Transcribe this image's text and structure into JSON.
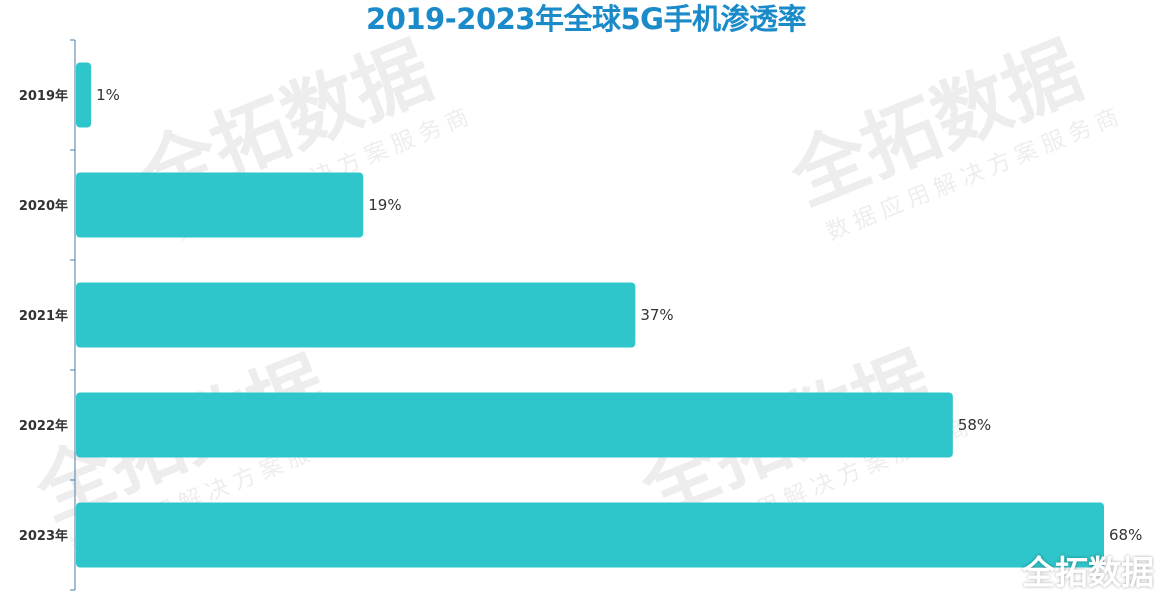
{
  "chart_data": {
    "type": "bar",
    "orientation": "horizontal",
    "title": "2019-2023年全球5G手机渗透率",
    "categories": [
      "2019年",
      "2020年",
      "2021年",
      "2022年",
      "2023年"
    ],
    "values": [
      1,
      19,
      37,
      58,
      68
    ],
    "value_labels": [
      "1%",
      "19%",
      "37%",
      "58%",
      "68%"
    ],
    "unit": "%",
    "xlim": [
      0,
      68
    ],
    "grid": false,
    "legend": "none",
    "bar_color": "#2ec6ca",
    "title_color": "#1a8ac9",
    "axis_color": "#4a7fa6"
  },
  "watermark": {
    "main": "全拓数据",
    "sub": "数据应用解决方案服务商"
  },
  "logo": {
    "text": "全拓数据"
  }
}
